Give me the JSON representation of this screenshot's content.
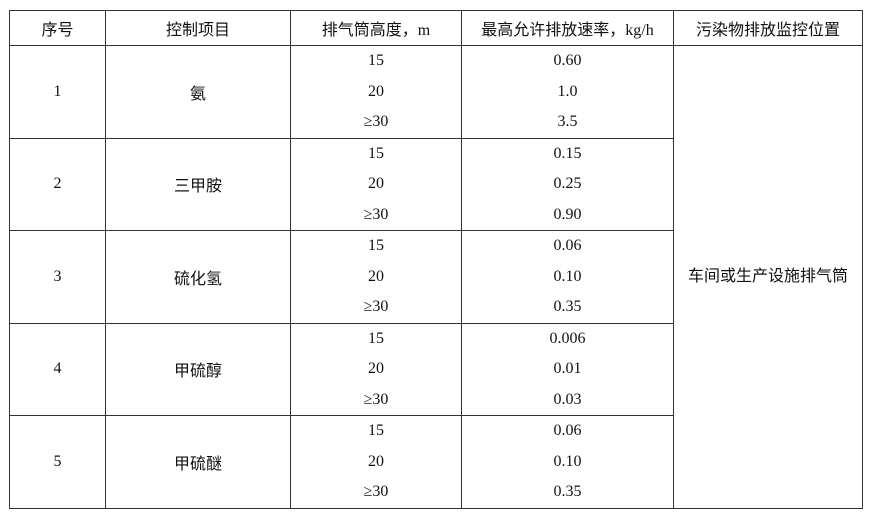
{
  "headers": [
    "序号",
    "控制项目",
    "排气筒高度，m",
    "最高允许排放速率，kg/h",
    "污染物排放监控位置"
  ],
  "rows": [
    {
      "no": "1",
      "item": "氨",
      "heights": [
        "15",
        "20",
        "≥30"
      ],
      "rates": [
        "0.60",
        "1.0",
        "3.5"
      ]
    },
    {
      "no": "2",
      "item": "三甲胺",
      "heights": [
        "15",
        "20",
        "≥30"
      ],
      "rates": [
        "0.15",
        "0.25",
        "0.90"
      ]
    },
    {
      "no": "3",
      "item": "硫化氢",
      "heights": [
        "15",
        "20",
        "≥30"
      ],
      "rates": [
        "0.06",
        "0.10",
        "0.35"
      ]
    },
    {
      "no": "4",
      "item": "甲硫醇",
      "heights": [
        "15",
        "20",
        "≥30"
      ],
      "rates": [
        "0.006",
        "0.01",
        "0.03"
      ]
    },
    {
      "no": "5",
      "item": "甲硫醚",
      "heights": [
        "15",
        "20",
        "≥30"
      ],
      "rates": [
        "0.06",
        "0.10",
        "0.35"
      ]
    }
  ],
  "location": "车间或生产设施排气筒"
}
